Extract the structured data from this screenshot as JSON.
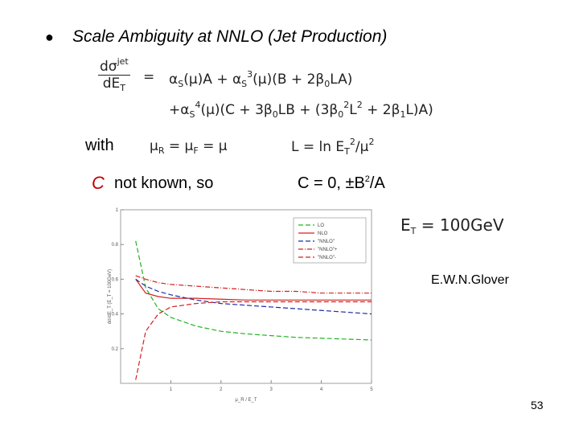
{
  "title": "Scale Ambiguity at NNLO (Jet Production)",
  "equation": {
    "lhs_num": "dσ",
    "lhs_num_sup": "jet",
    "lhs_den": "dE",
    "lhs_den_sub": "T",
    "equals": "=",
    "line1": [
      "α",
      "S",
      "(μ)A + α",
      "S",
      "3",
      "(μ)(B + 2β",
      "0",
      "LA)"
    ],
    "line2": [
      "+α",
      "S",
      "4",
      "(μ)(C + 3β",
      "0",
      "LB + (3β",
      "0",
      "2",
      "L",
      "2",
      " + 2β",
      "1",
      "L)A)"
    ]
  },
  "with": "with",
  "mu_def": [
    "μ",
    "R",
    " = μ",
    "F",
    " = μ"
  ],
  "l_def": [
    "L = ln E",
    "T",
    "2",
    "/μ",
    "2"
  ],
  "c_symbol": "C",
  "c_text": "not known,  so",
  "c_values": [
    "C = 0, ±B",
    "2",
    "/A"
  ],
  "et_value": [
    "E",
    "T",
    " = 100GeV"
  ],
  "credit": "E.W.N.Glover",
  "page_number": "53",
  "chart_data": {
    "type": "line",
    "x_label": "μ_R / E_T",
    "y_label": "dσ/dE_T (E_T = 100GeV)",
    "x": [
      0.3,
      0.5,
      0.75,
      1,
      1.5,
      2,
      2.5,
      3,
      3.5,
      4,
      4.5,
      5
    ],
    "xlim": [
      0,
      5
    ],
    "xticks": [
      1,
      2,
      3,
      4,
      5
    ],
    "ylim": [
      0,
      1
    ],
    "yticks": [
      0.2,
      0.4,
      0.6,
      0.8,
      1
    ],
    "series": [
      {
        "name": "LO",
        "color": "#22b222",
        "dash": "dashed",
        "values": [
          0.82,
          0.55,
          0.43,
          0.38,
          0.33,
          0.3,
          0.285,
          0.275,
          0.265,
          0.26,
          0.255,
          0.25
        ]
      },
      {
        "name": "NLO",
        "color": "#d42020",
        "dash": "solid",
        "values": [
          0.6,
          0.52,
          0.5,
          0.49,
          0.49,
          0.485,
          0.48,
          0.48,
          0.48,
          0.48,
          0.48,
          0.48
        ]
      },
      {
        "name": "\"NNLO\"",
        "color": "#1c2fa8",
        "dash": "dashed",
        "values": [
          0.6,
          0.56,
          0.53,
          0.51,
          0.48,
          0.46,
          0.45,
          0.44,
          0.43,
          0.42,
          0.41,
          0.4
        ]
      },
      {
        "name": "\"NNLO\"+",
        "color": "#d42020",
        "dash": "dashdot",
        "values": [
          0.62,
          0.6,
          0.58,
          0.57,
          0.56,
          0.55,
          0.54,
          0.53,
          0.53,
          0.52,
          0.52,
          0.52
        ]
      },
      {
        "name": "\"NNLO\"-",
        "color": "#d42020",
        "dash": "dashed",
        "values": [
          0.02,
          0.3,
          0.4,
          0.44,
          0.46,
          0.47,
          0.47,
          0.47,
          0.47,
          0.47,
          0.47,
          0.47
        ]
      }
    ]
  }
}
